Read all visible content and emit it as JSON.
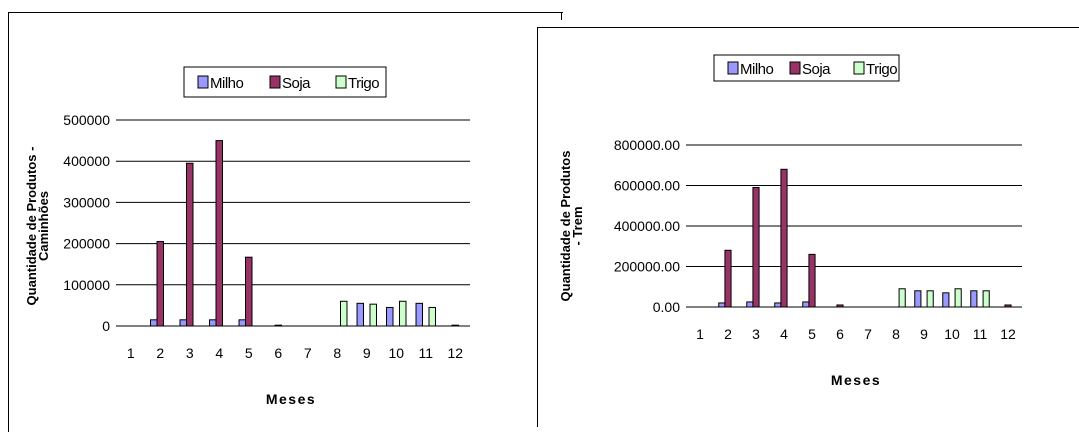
{
  "charts": [
    {
      "type": "bar",
      "xlabel": "Meses",
      "ylabel_line1": "Quantidade de Produtos -",
      "ylabel_line2": "Caminhões",
      "ylim": [
        0,
        500000
      ],
      "ytick_labels": [
        "0",
        "100000",
        "200000",
        "300000",
        "400000",
        "500000"
      ],
      "ytick_values": [
        0,
        100000,
        200000,
        300000,
        400000,
        500000
      ],
      "categories": [
        "1",
        "2",
        "3",
        "4",
        "5",
        "6",
        "7",
        "8",
        "9",
        "10",
        "11",
        "12"
      ],
      "legend": {
        "position": "top",
        "labels": [
          "Milho",
          "Soja",
          "Trigo"
        ]
      },
      "grid": true,
      "series": [
        {
          "name": "Milho",
          "color": "#9999ff",
          "values": [
            0,
            15000,
            15000,
            15000,
            15000,
            0,
            0,
            0,
            55000,
            45000,
            55000,
            0
          ]
        },
        {
          "name": "Soja",
          "color": "#993366",
          "values": [
            0,
            205000,
            395000,
            450000,
            167000,
            2000,
            0,
            0,
            0,
            0,
            0,
            2000
          ]
        },
        {
          "name": "Trigo",
          "color": "#ccffcc",
          "values": [
            0,
            0,
            0,
            0,
            0,
            0,
            0,
            60000,
            53000,
            60000,
            45000,
            0
          ]
        }
      ]
    },
    {
      "type": "bar",
      "xlabel": "Meses",
      "ylabel_line1": "Quantidade de Produtos",
      "ylabel_line2": "- Trem",
      "ylim": [
        0,
        800000
      ],
      "ytick_labels": [
        "0.00",
        "200000.00",
        "400000.00",
        "600000.00",
        "800000.00"
      ],
      "ytick_values": [
        0,
        200000,
        400000,
        600000,
        800000
      ],
      "categories": [
        "1",
        "2",
        "3",
        "4",
        "5",
        "6",
        "7",
        "8",
        "9",
        "10",
        "11",
        "12"
      ],
      "legend": {
        "position": "top",
        "labels": [
          "Milho",
          "Soja",
          "Trigo"
        ]
      },
      "grid": true,
      "series": [
        {
          "name": "Milho",
          "color": "#9999ff",
          "values": [
            0,
            20000,
            25000,
            20000,
            25000,
            0,
            0,
            0,
            80000,
            70000,
            80000,
            0
          ]
        },
        {
          "name": "Soja",
          "color": "#993366",
          "values": [
            0,
            280000,
            590000,
            680000,
            260000,
            10000,
            0,
            0,
            0,
            0,
            0,
            10000
          ]
        },
        {
          "name": "Trigo",
          "color": "#ccffcc",
          "values": [
            0,
            0,
            0,
            0,
            0,
            0,
            0,
            90000,
            80000,
            90000,
            80000,
            0
          ]
        }
      ]
    }
  ]
}
